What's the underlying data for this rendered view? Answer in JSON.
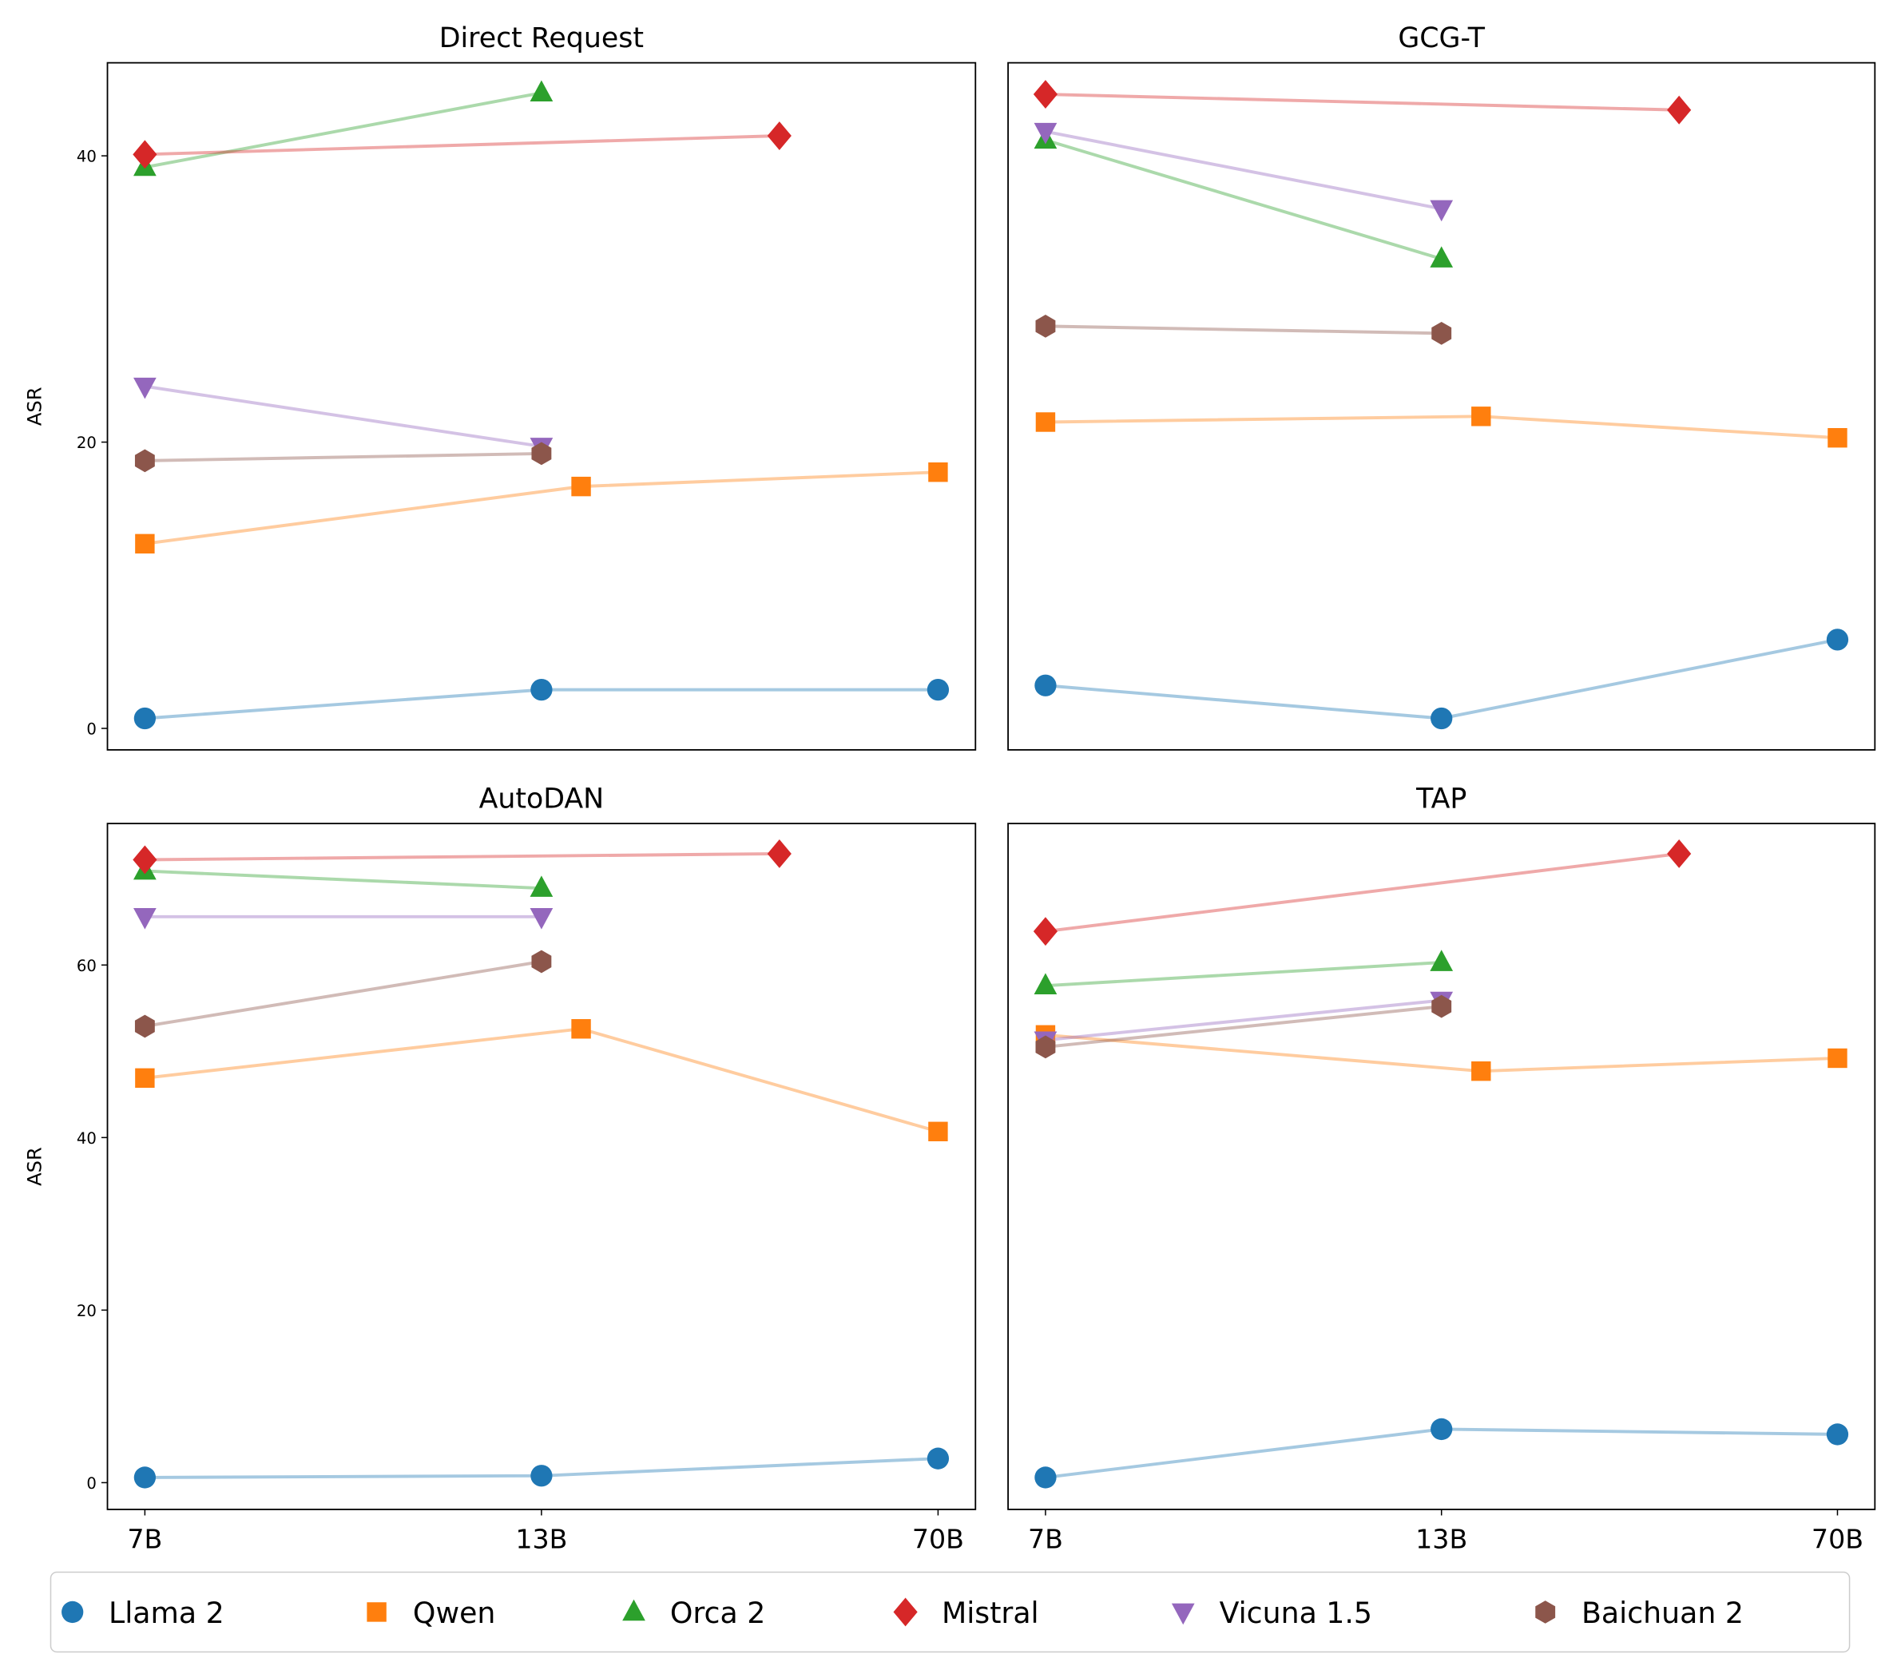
{
  "chart_data": {
    "type": "line",
    "layout": "2x2 grid, y shared per row, x shared per column",
    "x_tick_labels": [
      "7B",
      "13B",
      "70B"
    ],
    "ylabel": "ASR",
    "legend_position": "bottom-center",
    "legend_entries": [
      {
        "name": "Llama 2",
        "marker": "circle",
        "color": "#1f77b4"
      },
      {
        "name": "Qwen",
        "marker": "square",
        "color": "#ff7f0e"
      },
      {
        "name": "Orca 2",
        "marker": "triangle-up",
        "color": "#2ca02c"
      },
      {
        "name": "Mistral",
        "marker": "diamond",
        "color": "#d62728"
      },
      {
        "name": "Vicuna 1.5",
        "marker": "triangle-down",
        "color": "#9467bd"
      },
      {
        "name": "Baichuan 2",
        "marker": "hexagon",
        "color": "#8c564b"
      }
    ],
    "rows": [
      {
        "ylim": [
          -1.5,
          46.5
        ],
        "yticks": [
          0,
          20,
          40
        ]
      },
      {
        "ylim": [
          -3.1,
          76.4
        ],
        "yticks": [
          0,
          20,
          40,
          60
        ]
      }
    ],
    "x_positions_note": "x is categorical index: 7B=0, 13B=1, 70B=2; Qwen middle model at 1.1, Mistral second model at 1.6",
    "panels": [
      {
        "title": "Direct Request",
        "row": 0,
        "series": [
          {
            "name": "Llama 2",
            "x": [
              0,
              1,
              2
            ],
            "y": [
              0.7,
              2.7,
              2.7
            ]
          },
          {
            "name": "Qwen",
            "x": [
              0,
              1.1,
              2
            ],
            "y": [
              12.9,
              16.9,
              17.9
            ]
          },
          {
            "name": "Orca 2",
            "x": [
              0,
              1
            ],
            "y": [
              39.2,
              44.4
            ]
          },
          {
            "name": "Mistral",
            "x": [
              0,
              1.6
            ],
            "y": [
              40.1,
              41.4
            ]
          },
          {
            "name": "Vicuna 1.5",
            "x": [
              0,
              1
            ],
            "y": [
              23.9,
              19.7
            ]
          },
          {
            "name": "Baichuan 2",
            "x": [
              0,
              1
            ],
            "y": [
              18.7,
              19.2
            ]
          }
        ]
      },
      {
        "title": "GCG-T",
        "row": 0,
        "series": [
          {
            "name": "Llama 2",
            "x": [
              0,
              1,
              2
            ],
            "y": [
              3.0,
              0.7,
              6.2
            ]
          },
          {
            "name": "Qwen",
            "x": [
              0,
              1.1,
              2
            ],
            "y": [
              21.4,
              21.8,
              20.3
            ]
          },
          {
            "name": "Orca 2",
            "x": [
              0,
              1
            ],
            "y": [
              41.1,
              32.8
            ]
          },
          {
            "name": "Mistral",
            "x": [
              0,
              1.6
            ],
            "y": [
              44.3,
              43.2
            ]
          },
          {
            "name": "Vicuna 1.5",
            "x": [
              0,
              1
            ],
            "y": [
              41.7,
              36.3
            ]
          },
          {
            "name": "Baichuan 2",
            "x": [
              0,
              1
            ],
            "y": [
              28.1,
              27.6
            ]
          }
        ]
      },
      {
        "title": "AutoDAN",
        "row": 1,
        "series": [
          {
            "name": "Llama 2",
            "x": [
              0,
              1,
              2
            ],
            "y": [
              0.6,
              0.8,
              2.8
            ]
          },
          {
            "name": "Qwen",
            "x": [
              0,
              1.1,
              2
            ],
            "y": [
              46.9,
              52.6,
              40.7
            ]
          },
          {
            "name": "Orca 2",
            "x": [
              0,
              1
            ],
            "y": [
              70.9,
              68.9
            ]
          },
          {
            "name": "Mistral",
            "x": [
              0,
              1.6
            ],
            "y": [
              72.2,
              72.9
            ]
          },
          {
            "name": "Vicuna 1.5",
            "x": [
              0,
              1
            ],
            "y": [
              65.6,
              65.6
            ]
          },
          {
            "name": "Baichuan 2",
            "x": [
              0,
              1
            ],
            "y": [
              52.9,
              60.4
            ]
          }
        ]
      },
      {
        "title": "TAP",
        "row": 1,
        "series": [
          {
            "name": "Llama 2",
            "x": [
              0,
              1,
              2
            ],
            "y": [
              0.6,
              6.2,
              5.6
            ]
          },
          {
            "name": "Qwen",
            "x": [
              0,
              1.1,
              2
            ],
            "y": [
              51.9,
              47.7,
              49.2
            ]
          },
          {
            "name": "Orca 2",
            "x": [
              0,
              1
            ],
            "y": [
              57.6,
              60.3
            ]
          },
          {
            "name": "Mistral",
            "x": [
              0,
              1.6
            ],
            "y": [
              63.9,
              72.9
            ]
          },
          {
            "name": "Vicuna 1.5",
            "x": [
              0,
              1
            ],
            "y": [
              51.3,
              55.9
            ]
          },
          {
            "name": "Baichuan 2",
            "x": [
              0,
              1
            ],
            "y": [
              50.5,
              55.2
            ]
          }
        ]
      }
    ]
  }
}
